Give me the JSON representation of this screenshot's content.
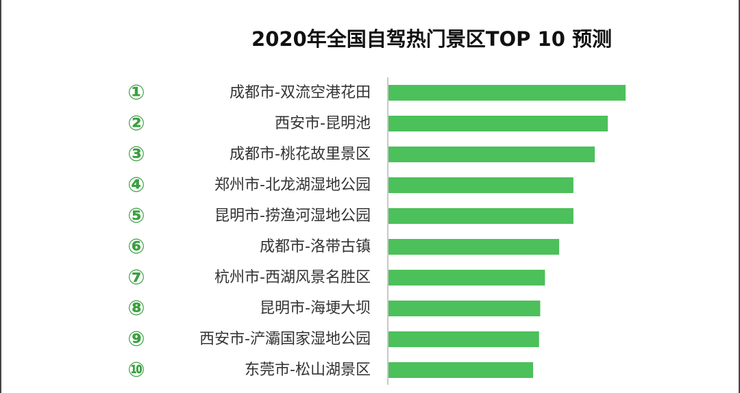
{
  "chart_data": {
    "type": "bar",
    "orientation": "horizontal",
    "title": "2020年全国自驾热门景区TOP 10 预测",
    "ranks": [
      "①",
      "②",
      "③",
      "④",
      "⑤",
      "⑥",
      "⑦",
      "⑧",
      "⑨",
      "⑩"
    ],
    "categories": [
      "成都市-双流空港花田",
      "西安市-昆明池",
      "成都市-桃花故里景区",
      "郑州市-北龙湖湿地公园",
      "昆明市-捞渔河湿地公园",
      "成都市-洛带古镇",
      "杭州市-西湖风景名胜区",
      "昆明市-海埂大坝",
      "西安市-浐灞国家湿地公园",
      "东莞市-松山湖景区"
    ],
    "values": [
      100,
      92.5,
      87,
      78,
      78,
      72,
      66,
      64,
      63.5,
      61
    ],
    "xlim": [
      0,
      100
    ],
    "grid": false,
    "legend": "none",
    "bar_color": "#4cc05a",
    "rank_color": "#3aa040",
    "axis_color": "#c8c8c8",
    "text_color": "#333333"
  }
}
